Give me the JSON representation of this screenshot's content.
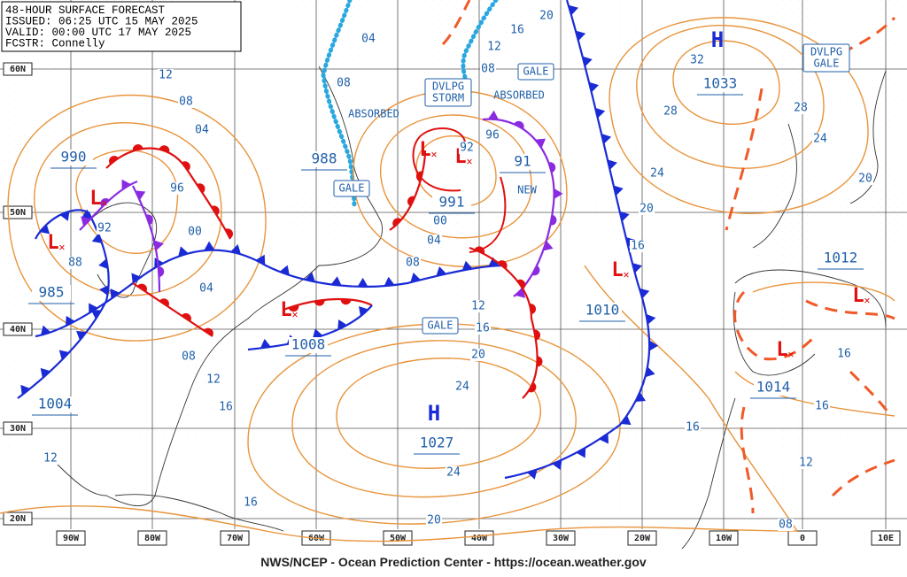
{
  "header": {
    "lines": [
      "48-HOUR SURFACE FORECAST",
      "ISSUED: 06:25 UTC 15 MAY 2025",
      "VALID:  00:00 UTC 17 MAY 2025",
      "FCSTR:  Connelly"
    ]
  },
  "lat_labels": [
    "60N",
    "50N",
    "40N",
    "30N",
    "20N"
  ],
  "lon_labels": [
    "90W",
    "80W",
    "70W",
    "60W",
    "50W",
    "40W",
    "30W",
    "20W",
    "10W",
    "0",
    "10E"
  ],
  "center_letters": [
    "H",
    "H",
    "L",
    "L",
    "L",
    "L",
    "L",
    "L",
    "L",
    "L"
  ],
  "pressures": [
    "990",
    "985",
    "1004",
    "1008",
    "988",
    "991",
    "91",
    "1010",
    "1033",
    "1027",
    "1012",
    "1014"
  ],
  "isobar_labels": [
    "12",
    "08",
    "04",
    "96",
    "00",
    "92",
    "88",
    "04",
    "08",
    "12",
    "16",
    "12",
    "16",
    "20",
    "24",
    "24",
    "20",
    "16",
    "12",
    "08",
    "04",
    "00",
    "92",
    "96",
    "04",
    "08",
    "12",
    "16",
    "20",
    "08",
    "32",
    "28",
    "24",
    "20",
    "16",
    "28",
    "24",
    "20",
    "16",
    "16",
    "12",
    "08",
    "16"
  ],
  "annotations": [
    "GALE",
    "GALE",
    "GALE",
    "DVLPG",
    "STORM",
    "DVLPG",
    "GALE",
    "ABSORBED",
    "ABSORBED",
    "NEW"
  ],
  "footer": "NWS/NCEP - Ocean Prediction Center - https://ocean.weather.gov"
}
